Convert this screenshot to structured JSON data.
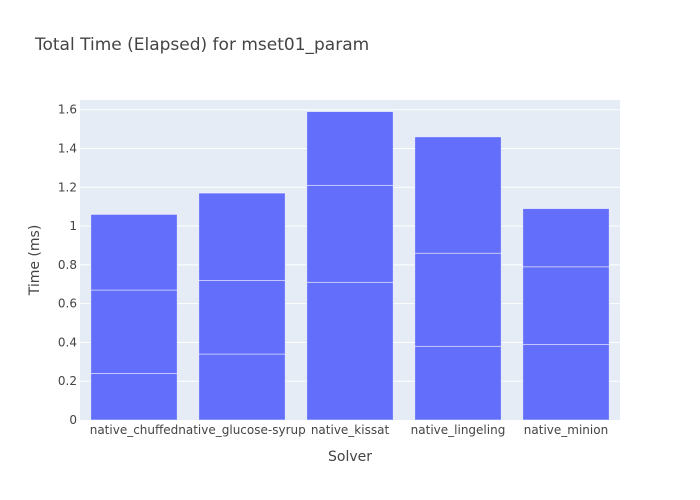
{
  "chart_data": {
    "type": "bar",
    "stacked": true,
    "title": "Total Time (Elapsed) for mset01_param",
    "xlabel": "Solver",
    "ylabel": "Time (ms)",
    "categories": [
      "native_chuffed",
      "native_glucose-syrup",
      "native_kissat",
      "native_lingeling",
      "native_minion"
    ],
    "series": [
      {
        "values": [
          0.24,
          0.34,
          0.71,
          0.38,
          0.39
        ]
      },
      {
        "values": [
          0.43,
          0.38,
          0.5,
          0.48,
          0.4
        ]
      },
      {
        "values": [
          0.39,
          0.45,
          0.38,
          0.6,
          0.3
        ]
      }
    ],
    "ylim": [
      0,
      1.65
    ],
    "yticks": [
      0,
      0.2,
      0.4,
      0.6,
      0.8,
      1,
      1.2,
      1.4,
      1.6
    ],
    "ytick_labels": [
      "0",
      "0.2",
      "0.4",
      "0.6",
      "0.8",
      "1",
      "1.2",
      "1.4",
      "1.6"
    ],
    "grid": true,
    "legend": "none",
    "colors": {
      "bar": "#636efa",
      "plot_bg": "#e5ecf6",
      "grid": "#ffffff",
      "text": "#444444"
    }
  }
}
